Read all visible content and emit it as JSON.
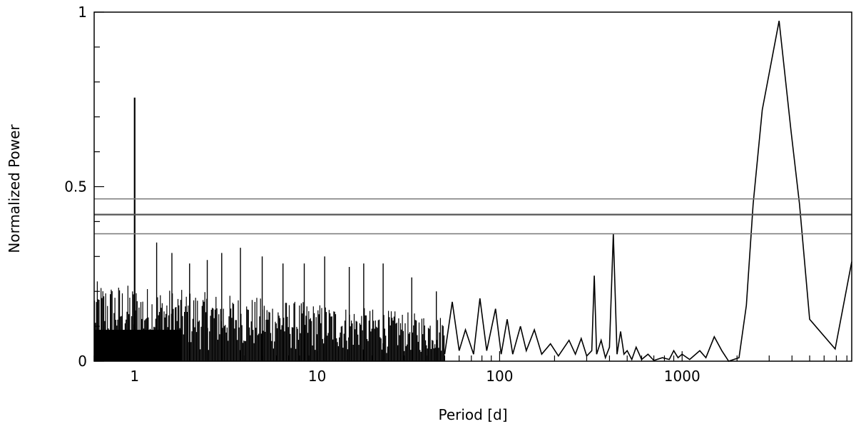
{
  "chart_data": {
    "type": "line",
    "title": "",
    "xlabel": "Period [d]",
    "ylabel": "Normalized Power",
    "x_scale": "log",
    "xlim": [
      0.6,
      8500
    ],
    "ylim": [
      0,
      1
    ],
    "grid": false,
    "x_ticks": [
      {
        "value": 1,
        "label": "1"
      },
      {
        "value": 10,
        "label": "10"
      },
      {
        "value": 100,
        "label": "100"
      },
      {
        "value": 1000,
        "label": "1000"
      }
    ],
    "y_ticks": [
      {
        "value": 0,
        "label": "0"
      },
      {
        "value": 0.5,
        "label": "0.5"
      },
      {
        "value": 1,
        "label": "1"
      }
    ],
    "threshold_lines": [
      0.465,
      0.42,
      0.365
    ],
    "series": [
      {
        "values_note": "periodogram",
        "peaks": [
          {
            "period": 1.0,
            "power": 0.755
          },
          {
            "period": 1.32,
            "power": 0.34
          },
          {
            "period": 1.6,
            "power": 0.31
          },
          {
            "period": 2.0,
            "power": 0.28
          },
          {
            "period": 2.5,
            "power": 0.29
          },
          {
            "period": 3.0,
            "power": 0.31
          },
          {
            "period": 3.8,
            "power": 0.325
          },
          {
            "period": 5.0,
            "power": 0.3
          },
          {
            "period": 6.5,
            "power": 0.28
          },
          {
            "period": 8.5,
            "power": 0.28
          },
          {
            "period": 11,
            "power": 0.3
          },
          {
            "period": 15,
            "power": 0.27
          },
          {
            "period": 18,
            "power": 0.28
          },
          {
            "period": 23,
            "power": 0.28
          },
          {
            "period": 33,
            "power": 0.24
          },
          {
            "period": 45,
            "power": 0.2
          },
          {
            "period": 55,
            "power": 0.18
          },
          {
            "period": 75,
            "power": 0.18
          },
          {
            "period": 95,
            "power": 0.15
          },
          {
            "period": 115,
            "power": 0.12
          },
          {
            "period": 140,
            "power": 0.1
          },
          {
            "period": 175,
            "power": 0.08
          },
          {
            "period": 260,
            "power": 0.07
          },
          {
            "period": 330,
            "power": 0.245
          },
          {
            "period": 420,
            "power": 0.365
          },
          {
            "period": 460,
            "power": 0.085
          },
          {
            "period": 560,
            "power": 0.04
          },
          {
            "period": 900,
            "power": 0.03
          },
          {
            "period": 1500,
            "power": 0.07
          },
          {
            "period": 3400,
            "power": 0.975
          },
          {
            "period": 6900,
            "power": 0.035
          },
          {
            "period": 8500,
            "power": 0.285
          }
        ],
        "line_points": [
          [
            50,
            0.02
          ],
          [
            55,
            0.17
          ],
          [
            60,
            0.03
          ],
          [
            65,
            0.09
          ],
          [
            72,
            0.02
          ],
          [
            78,
            0.18
          ],
          [
            85,
            0.03
          ],
          [
            95,
            0.15
          ],
          [
            102,
            0.02
          ],
          [
            110,
            0.12
          ],
          [
            118,
            0.02
          ],
          [
            130,
            0.1
          ],
          [
            140,
            0.03
          ],
          [
            155,
            0.09
          ],
          [
            170,
            0.02
          ],
          [
            190,
            0.05
          ],
          [
            210,
            0.015
          ],
          [
            240,
            0.06
          ],
          [
            260,
            0.02
          ],
          [
            280,
            0.065
          ],
          [
            300,
            0.015
          ],
          [
            320,
            0.03
          ],
          [
            330,
            0.245
          ],
          [
            340,
            0.02
          ],
          [
            360,
            0.06
          ],
          [
            380,
            0.01
          ],
          [
            400,
            0.04
          ],
          [
            420,
            0.365
          ],
          [
            440,
            0.02
          ],
          [
            460,
            0.085
          ],
          [
            480,
            0.02
          ],
          [
            500,
            0.03
          ],
          [
            530,
            0.005
          ],
          [
            560,
            0.04
          ],
          [
            600,
            0.005
          ],
          [
            650,
            0.02
          ],
          [
            700,
            0.002
          ],
          [
            780,
            0.01
          ],
          [
            850,
            0.005
          ],
          [
            900,
            0.03
          ],
          [
            950,
            0.01
          ],
          [
            1000,
            0.02
          ],
          [
            1100,
            0.005
          ],
          [
            1250,
            0.03
          ],
          [
            1350,
            0.01
          ],
          [
            1500,
            0.07
          ],
          [
            1650,
            0.03
          ],
          [
            1800,
            0.0
          ],
          [
            2050,
            0.01
          ],
          [
            2250,
            0.16
          ],
          [
            2450,
            0.45
          ],
          [
            2750,
            0.72
          ],
          [
            3400,
            0.975
          ],
          [
            3950,
            0.66
          ],
          [
            4400,
            0.45
          ],
          [
            5000,
            0.12
          ],
          [
            6900,
            0.035
          ],
          [
            8500,
            0.285
          ]
        ]
      }
    ]
  }
}
